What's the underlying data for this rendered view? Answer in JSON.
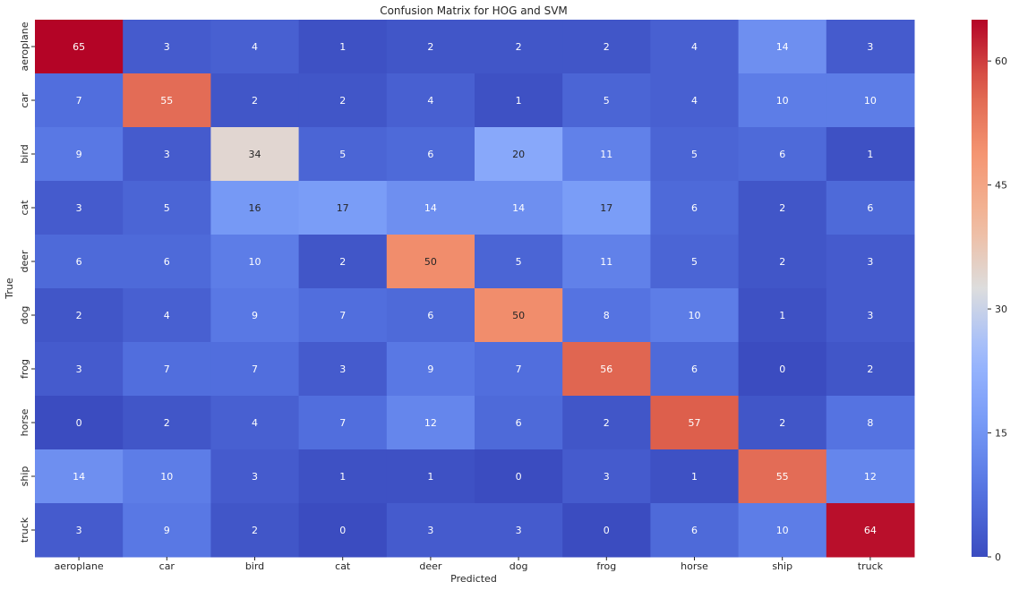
{
  "chart_data": {
    "type": "heatmap",
    "title": "Confusion Matrix for HOG and SVM",
    "xlabel": "Predicted",
    "ylabel": "True",
    "x_categories": [
      "aeroplane",
      "car",
      "bird",
      "cat",
      "deer",
      "dog",
      "frog",
      "horse",
      "ship",
      "truck"
    ],
    "y_categories": [
      "aeroplane",
      "car",
      "bird",
      "cat",
      "deer",
      "dog",
      "frog",
      "horse",
      "ship",
      "truck"
    ],
    "values": [
      [
        65,
        3,
        4,
        1,
        2,
        2,
        2,
        4,
        14,
        3
      ],
      [
        7,
        55,
        2,
        2,
        4,
        1,
        5,
        4,
        10,
        10
      ],
      [
        9,
        3,
        34,
        5,
        6,
        20,
        11,
        5,
        6,
        1
      ],
      [
        3,
        5,
        16,
        17,
        14,
        14,
        17,
        6,
        2,
        6
      ],
      [
        6,
        6,
        10,
        2,
        50,
        5,
        11,
        5,
        2,
        3
      ],
      [
        2,
        4,
        9,
        7,
        6,
        50,
        8,
        10,
        1,
        3
      ],
      [
        3,
        7,
        7,
        3,
        9,
        7,
        56,
        6,
        0,
        2
      ],
      [
        0,
        2,
        4,
        7,
        12,
        6,
        2,
        57,
        2,
        8
      ],
      [
        14,
        10,
        3,
        1,
        1,
        0,
        3,
        1,
        55,
        12
      ],
      [
        3,
        9,
        2,
        0,
        3,
        3,
        0,
        6,
        10,
        64
      ]
    ],
    "colormap": "coolwarm",
    "vmin": 0,
    "vmax": 65,
    "colorbar_ticks": [
      "0",
      "15",
      "30",
      "45",
      "60"
    ]
  }
}
